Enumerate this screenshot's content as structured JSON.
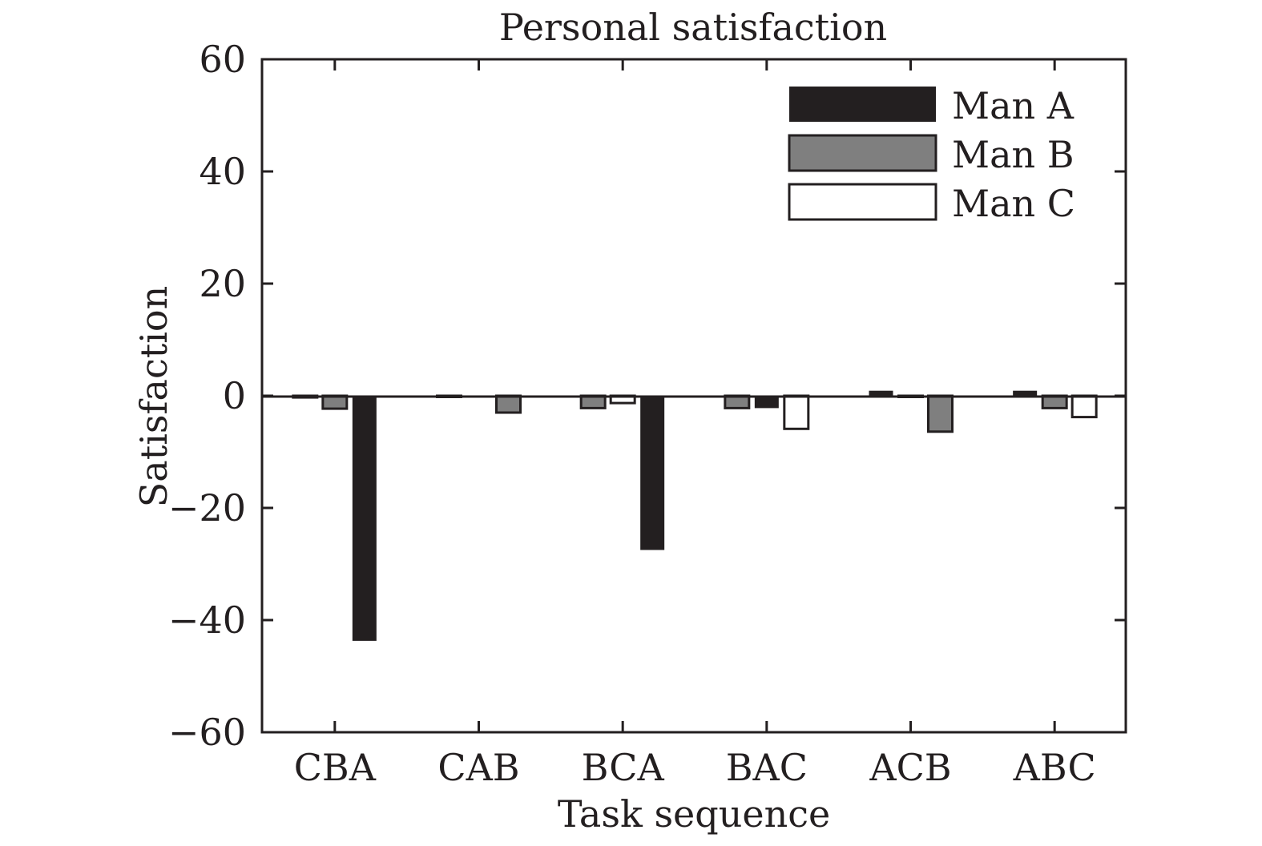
{
  "chart_data": {
    "type": "bar",
    "title": "Personal satisfaction",
    "xlabel": "Task sequence",
    "ylabel": "Satisfaction",
    "ylim": [
      -60,
      60
    ],
    "yticks": [
      60,
      40,
      20,
      0,
      -20,
      -40,
      -60
    ],
    "ytick_labels": [
      "60",
      "40",
      "20",
      "0",
      "−20",
      "−40",
      "−60"
    ],
    "grid": false,
    "legend_position": "top-right",
    "categories": [
      "CBA",
      "CAB",
      "BCA",
      "BAC",
      "ACB",
      "ABC"
    ],
    "bar_order_note": "within each group bars follow the letters of the task sequence",
    "series": [
      {
        "name": "Man A",
        "color": "#231f20",
        "values": [
          -43.7,
          -0.2,
          -27.5,
          -2.2,
          0.9,
          0.9
        ]
      },
      {
        "name": "Man B",
        "color": "#7f7f7f",
        "values": [
          -2.3,
          -3.0,
          -2.2,
          -2.2,
          -6.4,
          -2.2
        ]
      },
      {
        "name": "Man C",
        "color": "#ffffff",
        "values": [
          -0.3,
          -0.2,
          -1.3,
          -5.9,
          -0.2,
          -3.8
        ]
      }
    ]
  }
}
